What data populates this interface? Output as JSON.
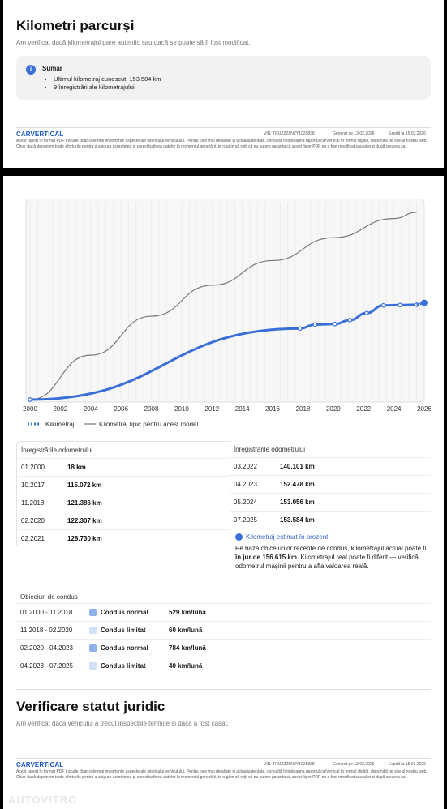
{
  "section1": {
    "title": "Kilometri parcurși",
    "subtitle": "Am verificat dacă kilometrajul pare autentic sau dacă se poate să fi fost modificat.",
    "summary_title": "Sumar",
    "summary_items": [
      "Ultimul kilometraj cunoscut: 153.584 km",
      "9 înregistrări ale kilometrajului"
    ]
  },
  "footer": {
    "logo": "CARVERTICAL",
    "vin": "VIN:  TRUZZZ8NZY1025838",
    "generated": "Generat pe  13.02.2026",
    "expires": "Expiră la  15.03.2026",
    "disclaimer": "Acest raport în format PDF include doar cele mai importante aspecte ale istoricului vehiculului. Pentru cele mai detaliate și actualizate date, consultă întotdeauna raportul carVertical în format digital, disponibil pe site-ul nostru web. Chiar dacă depunem toate eforturile pentru a asigura acuratețea și corectitudinea datelor la momentul generării, te rugăm să reții că nu putem garanta că acest fișier PDF nu a fost modificat sau alterat după crearea sa."
  },
  "chart_data": {
    "type": "line",
    "x_ticks": [
      "2000",
      "2002",
      "2004",
      "2006",
      "2008",
      "2010",
      "2012",
      "2014",
      "2016",
      "2018",
      "2020",
      "2022",
      "2024",
      "2026"
    ],
    "xlim": [
      2000,
      2026
    ],
    "grid": true,
    "legend_position": "bottom-left",
    "series": [
      {
        "name": "Kilometraj",
        "color": "#3b6fd8",
        "style": "dotted-thick",
        "x": [
          2000.0,
          2017.8,
          2018.8,
          2020.1,
          2021.1,
          2022.2,
          2023.3,
          2024.4,
          2025.5
        ],
        "y": [
          18,
          115072,
          121386,
          122307,
          128730,
          140101,
          152478,
          153056,
          153584
        ],
        "points_marked": true
      },
      {
        "name": "Kilometraj tipic pentru acest model",
        "color": "#777777",
        "style": "solid-thin",
        "x": [
          2000,
          2004,
          2008,
          2012,
          2016,
          2020,
          2024,
          2025.5
        ],
        "y": [
          0,
          72000,
          135000,
          185000,
          225000,
          262000,
          293000,
          303000
        ]
      }
    ],
    "estimated_point": {
      "x": 2026,
      "y": 156615
    }
  },
  "odometer_left": {
    "header": "Înregistrările odometrului",
    "rows": [
      {
        "date": "01.2000",
        "value": "18 km"
      },
      {
        "date": "10.2017",
        "value": "115.072 km"
      },
      {
        "date": "11.2018",
        "value": "121.386 km"
      },
      {
        "date": "02.2020",
        "value": "122.307 km"
      },
      {
        "date": "02.2021",
        "value": "128.730 km"
      }
    ]
  },
  "odometer_right": {
    "header": "Înregistrările odometrului",
    "rows": [
      {
        "date": "03.2022",
        "value": "140.101 km"
      },
      {
        "date": "04.2023",
        "value": "152.478 km"
      },
      {
        "date": "05.2024",
        "value": "153.056 km"
      },
      {
        "date": "07.2025",
        "value": "153.584 km"
      }
    ],
    "estimate_title": "Kilometraj estimat în prezent",
    "estimate_pre": "Pe baza obiceiurilor recente de condus, kilometrajul actual poate fi ",
    "estimate_bold": "în jur de 156.615 km.",
    "estimate_post": " Kilometrajul real poate fi diferit — verifică odometrul mașinii pentru a afla valoarea reală."
  },
  "habits": {
    "header": "Obiceiuri de condus",
    "rows": [
      {
        "period": "01.2000 - 11.2018",
        "label": "Condus normal",
        "rate": "529 km/lună",
        "color": "#8fb2ea"
      },
      {
        "period": "11.2018 - 02.2020",
        "label": "Condus limitat",
        "rate": "60 km/lună",
        "color": "#cfe2f7"
      },
      {
        "period": "02.2020 - 04.2023",
        "label": "Condus normal",
        "rate": "784 km/lună",
        "color": "#8fb2ea"
      },
      {
        "period": "04.2023 - 07.2025",
        "label": "Condus limitat",
        "rate": "40 km/lună",
        "color": "#cfe2f7"
      }
    ]
  },
  "section2": {
    "title": "Verificare statut juridic",
    "subtitle": "Am verificat dacă vehiculul a trecut inspecțiile tehnice și dacă a fost casat."
  },
  "watermark": "AUTOVITRO"
}
